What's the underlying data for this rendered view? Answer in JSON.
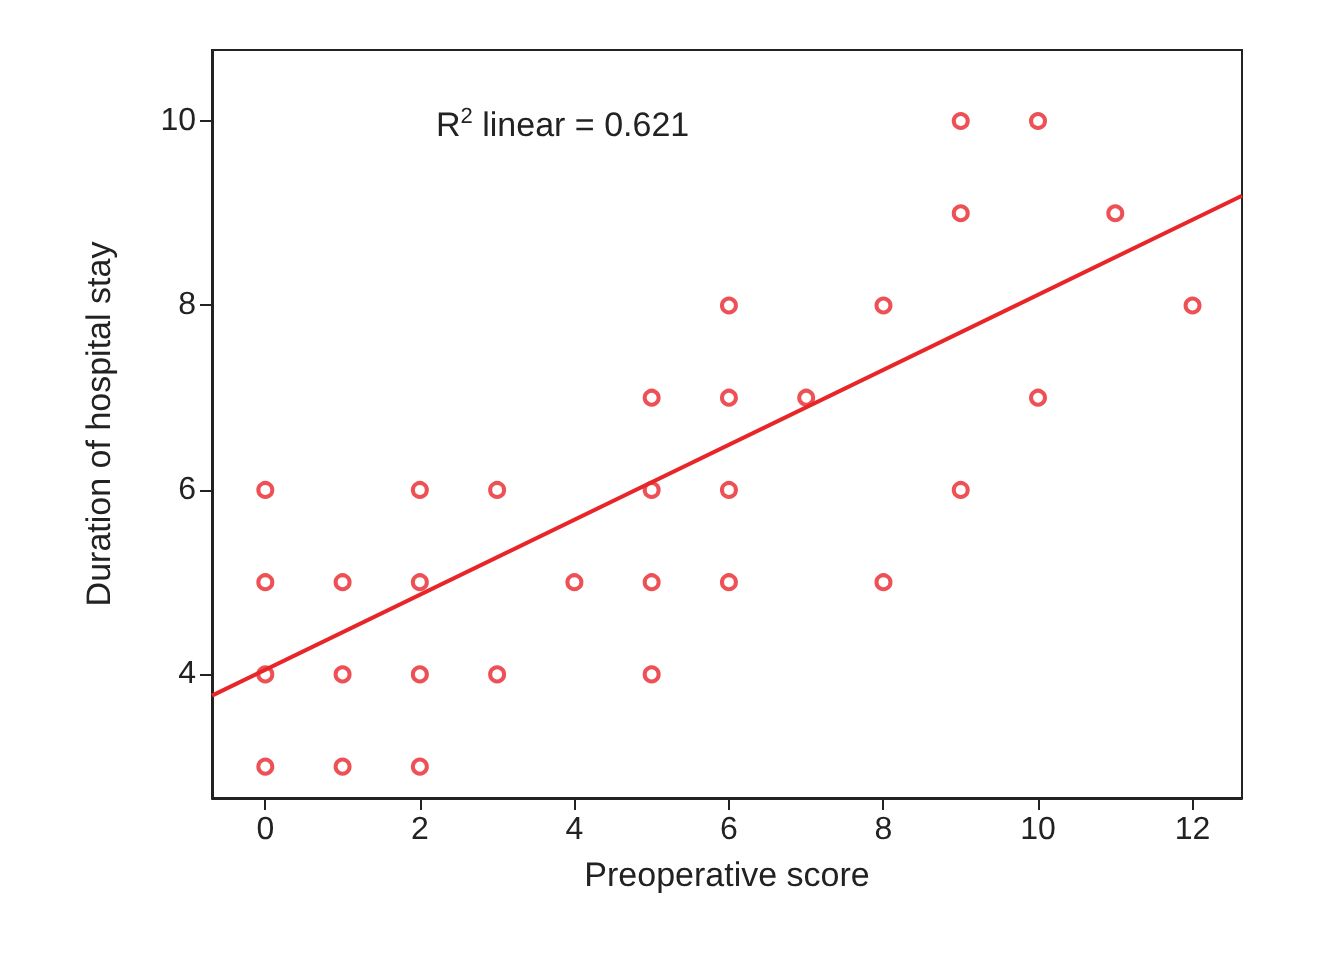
{
  "chart_data": {
    "type": "scatter",
    "xlabel": "Preoperative score",
    "ylabel": "Duration of hospital stay",
    "annotations": [
      "R$^{2}$ linear = 0.621"
    ],
    "xlim": [
      -0.69,
      12.64
    ],
    "ylim": [
      2.66,
      10.77
    ],
    "xticks": [
      0,
      2,
      4,
      6,
      8,
      10,
      12
    ],
    "yticks": [
      4,
      6,
      8,
      10
    ],
    "grid": false,
    "marker": "circle",
    "series": [
      {
        "color": "#e8262a",
        "x": [
          0,
          0,
          0,
          0,
          1,
          1,
          1,
          2,
          2,
          2,
          2,
          3,
          3,
          4,
          5,
          5,
          5,
          5,
          6,
          6,
          6,
          6,
          7,
          8,
          8,
          9,
          9,
          9,
          10,
          10,
          11,
          12
        ],
        "values": [
          6,
          5,
          4,
          3,
          5,
          4,
          3,
          6,
          5,
          4,
          3,
          6,
          4,
          5,
          7,
          6,
          5,
          4,
          8,
          7,
          6,
          5,
          7,
          8,
          5,
          10,
          9,
          6,
          10,
          7,
          9,
          8
        ]
      },
      {
        "type": "line",
        "color": "#e8262a",
        "x": [
          -0.69,
          12.64
        ],
        "values": [
          3.77,
          9.19
        ],
        "marker": "none",
        "line_style": "solid"
      }
    ]
  }
}
